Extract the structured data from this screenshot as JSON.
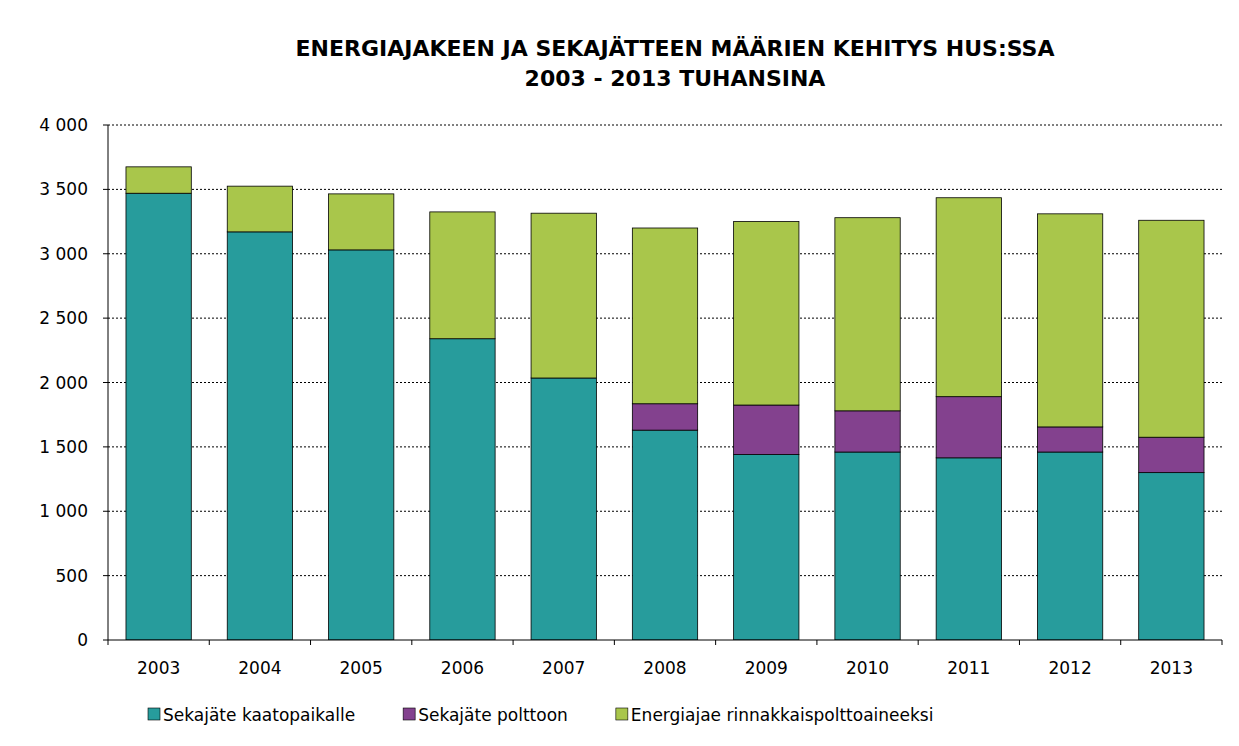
{
  "chart_data": {
    "type": "bar",
    "title": "ENERGIAJAKEEN JA SEKAJÄTTEEN MÄÄRIEN KEHITYS HUS:SSA\n2003 - 2013 TUHANSINA",
    "stacked": true,
    "grid": true,
    "legend": "bottom",
    "categories": [
      "2003",
      "2004",
      "2005",
      "2006",
      "2007",
      "2008",
      "2009",
      "2010",
      "2011",
      "2012",
      "2013"
    ],
    "series": [
      {
        "name": "Sekajäte kaatopaikalle",
        "color": "#279c9c",
        "values": [
          3470,
          3170,
          3030,
          2340,
          2035,
          1630,
          1440,
          1460,
          1415,
          1460,
          1300
        ]
      },
      {
        "name": "Sekajäte polttoon",
        "color": "#83418e",
        "values": [
          0,
          0,
          0,
          0,
          0,
          205,
          385,
          320,
          475,
          195,
          275
        ]
      },
      {
        "name": "Energiajae rinnakkaispolttoaineeksi",
        "color": "#a9c64b",
        "values": [
          205,
          355,
          435,
          985,
          1280,
          1365,
          1425,
          1500,
          1545,
          1655,
          1685
        ]
      }
    ],
    "ylim": [
      0,
      4000
    ],
    "yticks": [
      0,
      500,
      {
        "value": 1000,
        "label": "1 000"
      },
      {
        "value": 1500,
        "label": "1 500"
      },
      {
        "value": 2000,
        "label": "2 000"
      },
      {
        "value": 2500,
        "label": "2 500"
      },
      {
        "value": 3000,
        "label": "3 000"
      },
      {
        "value": 3500,
        "label": "3 500"
      },
      {
        "value": 4000,
        "label": "4 000"
      }
    ]
  }
}
